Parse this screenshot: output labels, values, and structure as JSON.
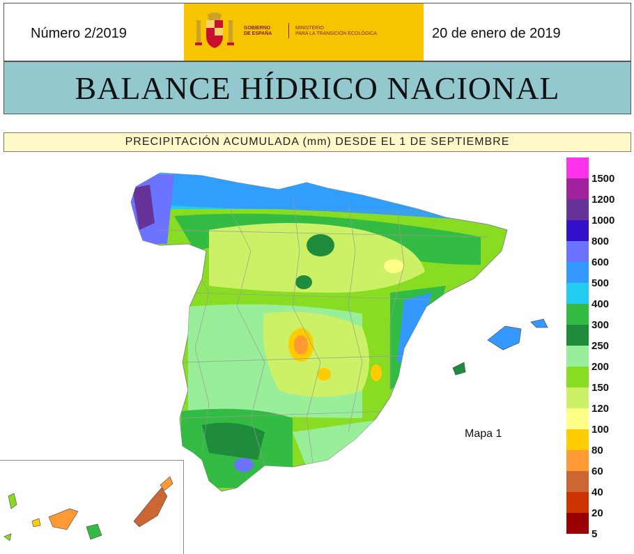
{
  "header": {
    "issue": "Número 2/2019",
    "date": "20 de enero de 2019",
    "logo": {
      "gobierno": [
        "GOBIERNO",
        "DE ESPAÑA"
      ],
      "ministerio": [
        "MINISTERIO",
        "PARA LA TRANSICIÓN ECOLÓGICA"
      ],
      "background_color": "#f6c500"
    }
  },
  "title": "BALANCE HÍDRICO NACIONAL",
  "subtitle": "PRECIPITACIÓN ACUMULADA (mm) DESDE EL 1 DE SEPTIEMBRE",
  "map": {
    "label": "Mapa 1"
  },
  "legend": {
    "items": [
      {
        "label": "1500",
        "color": "#ff33ee"
      },
      {
        "label": "1200",
        "color": "#a0219c"
      },
      {
        "label": "1000",
        "color": "#663399"
      },
      {
        "label": "800",
        "color": "#3311cc"
      },
      {
        "label": "600",
        "color": "#6b73ff"
      },
      {
        "label": "500",
        "color": "#3399ff"
      },
      {
        "label": "400",
        "color": "#22ccf0"
      },
      {
        "label": "300",
        "color": "#33bb44"
      },
      {
        "label": "250",
        "color": "#1e8c3a"
      },
      {
        "label": "200",
        "color": "#99ee99"
      },
      {
        "label": "150",
        "color": "#88dd22"
      },
      {
        "label": "120",
        "color": "#ccf066"
      },
      {
        "label": "100",
        "color": "#ffff88"
      },
      {
        "label": "80",
        "color": "#ffcc00"
      },
      {
        "label": "60",
        "color": "#ff9933"
      },
      {
        "label": "40",
        "color": "#cc6633"
      },
      {
        "label": "20",
        "color": "#cc3300"
      },
      {
        "label": "5",
        "color": "#990000"
      }
    ]
  }
}
